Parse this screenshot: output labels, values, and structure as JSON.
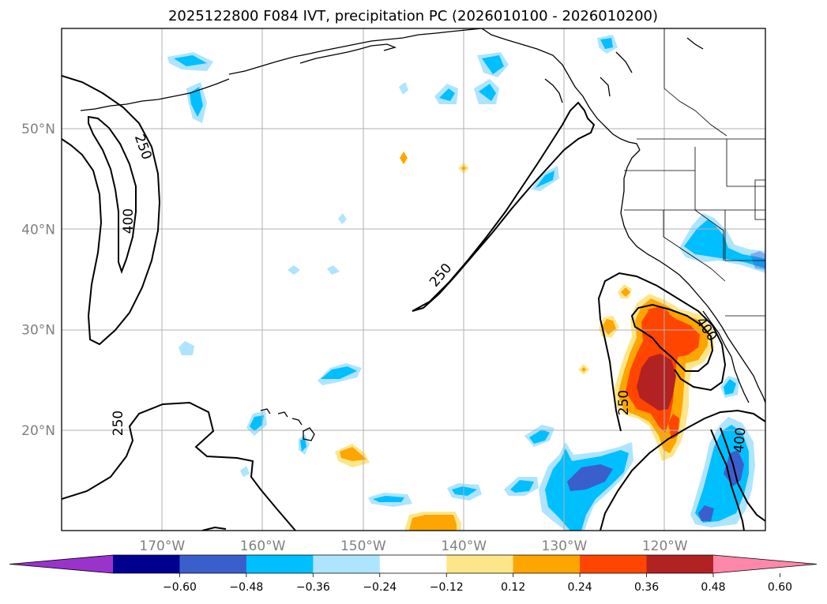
{
  "chart_data": {
    "type": "filled-contour-map",
    "title": "2025122800 F084 IVT, precipitation PC (2026010100 - 2026010200)",
    "lon_range": [
      -180,
      -110
    ],
    "lat_range": [
      10,
      60
    ],
    "lat_ticks": [
      {
        "value": 20,
        "label": "20°N"
      },
      {
        "value": 30,
        "label": "30°N"
      },
      {
        "value": 40,
        "label": "40°N"
      },
      {
        "value": 50,
        "label": "50°N"
      }
    ],
    "lon_ticks": [
      {
        "value": -170,
        "label": "170°W"
      },
      {
        "value": -160,
        "label": "160°W"
      },
      {
        "value": -150,
        "label": "150°W"
      },
      {
        "value": -140,
        "label": "140°W"
      },
      {
        "value": -130,
        "label": "130°W"
      },
      {
        "value": -120,
        "label": "120°W"
      }
    ],
    "colorbar": {
      "levels": [
        "−0.60",
        "−0.48",
        "−0.36",
        "−0.24",
        "−0.12",
        "0.12",
        "0.24",
        "0.36",
        "0.48",
        "0.60"
      ],
      "colors": [
        "#9933cc",
        "#000090",
        "#3a5fcd",
        "#00bfff",
        "#aee4ff",
        "#ffffff",
        "#fde68a",
        "#ffa500",
        "#ff4500",
        "#b22222",
        "#ff88aa"
      ]
    },
    "ivt_contour_labels": [
      "250",
      "400",
      "250",
      "250",
      "250",
      "400",
      "400"
    ],
    "grid": true
  }
}
